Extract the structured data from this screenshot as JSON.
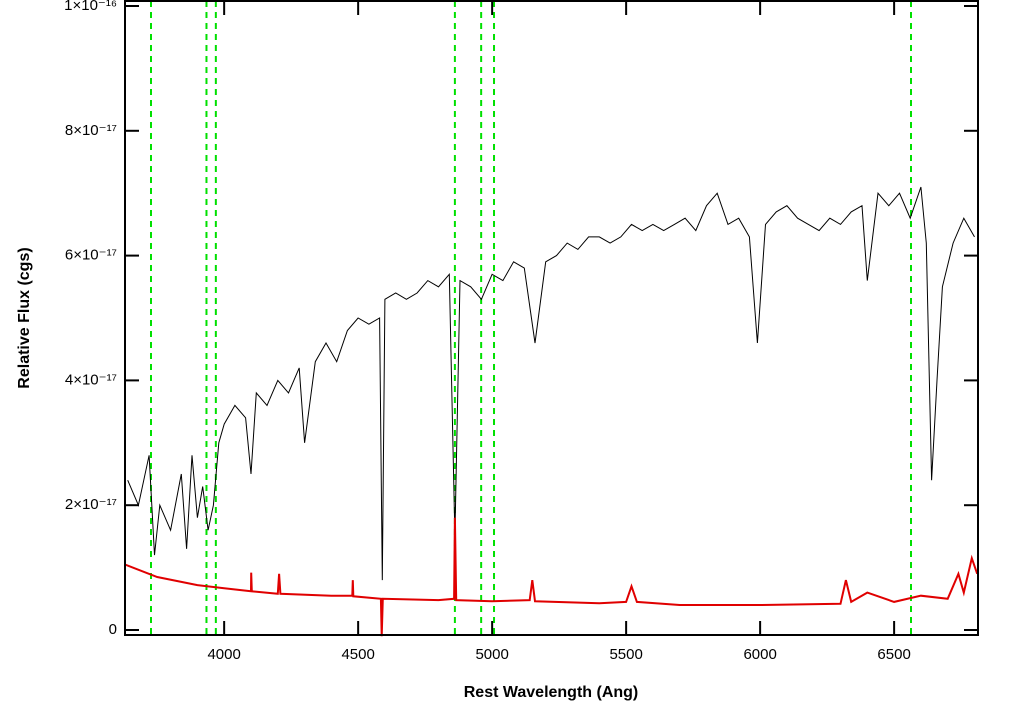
{
  "chart_data": {
    "type": "line",
    "xlabel": "Rest Wavelength (Ang)",
    "ylabel": "Relative Flux (cgs)",
    "xlim": [
      3630,
      6813
    ],
    "ylim": [
      -8e-19,
      1.008e-16
    ],
    "xticks": [
      4000,
      4500,
      5000,
      5500,
      6000,
      6500
    ],
    "yticks": [
      0,
      {
        "value": 2e-17,
        "label": "2×10⁻¹⁷"
      },
      {
        "value": 4e-17,
        "label": "4×10⁻¹⁷"
      },
      {
        "value": 6e-17,
        "label": "6×10⁻¹⁷"
      },
      {
        "value": 8e-17,
        "label": "8×10⁻¹⁷"
      },
      {
        "value": 1e-16,
        "label": "1×10⁻¹⁶"
      }
    ],
    "series": [
      {
        "color": "#000000",
        "x": [
          3640,
          3680,
          3720,
          3740,
          3760,
          3800,
          3840,
          3860,
          3880,
          3900,
          3920,
          3940,
          3960,
          3980,
          4000,
          4040,
          4080,
          4100,
          4120,
          4160,
          4200,
          4240,
          4280,
          4300,
          4340,
          4380,
          4420,
          4460,
          4500,
          4540,
          4580,
          4590,
          4600,
          4640,
          4680,
          4720,
          4760,
          4800,
          4840,
          4861,
          4880,
          4920,
          4960,
          5000,
          5040,
          5080,
          5120,
          5160,
          5200,
          5240,
          5280,
          5320,
          5360,
          5400,
          5440,
          5480,
          5520,
          5560,
          5600,
          5640,
          5680,
          5720,
          5760,
          5800,
          5840,
          5880,
          5920,
          5960,
          5990,
          6020,
          6060,
          6100,
          6140,
          6180,
          6220,
          6260,
          6300,
          6340,
          6380,
          6400,
          6440,
          6480,
          6520,
          6560,
          6600,
          6620,
          6640,
          6660,
          6680,
          6720,
          6760,
          6800
        ],
        "values": [
          2.4e-17,
          2e-17,
          2.8e-17,
          1.2e-17,
          2e-17,
          1.6e-17,
          2.5e-17,
          1.3e-17,
          2.8e-17,
          1.8e-17,
          2.3e-17,
          1.6e-17,
          2e-17,
          3e-17,
          3.3e-17,
          3.6e-17,
          3.4e-17,
          2.5e-17,
          3.8e-17,
          3.6e-17,
          4e-17,
          3.8e-17,
          4.2e-17,
          3e-17,
          4.3e-17,
          4.6e-17,
          4.3e-17,
          4.8e-17,
          5e-17,
          4.9e-17,
          5e-17,
          8e-18,
          5.3e-17,
          5.4e-17,
          5.3e-17,
          5.4e-17,
          5.6e-17,
          5.5e-17,
          5.7e-17,
          1.5e-17,
          5.6e-17,
          5.5e-17,
          5.3e-17,
          5.7e-17,
          5.6e-17,
          5.9e-17,
          5.8e-17,
          4.6e-17,
          5.9e-17,
          6e-17,
          6.2e-17,
          6.1e-17,
          6.3e-17,
          6.3e-17,
          6.2e-17,
          6.3e-17,
          6.5e-17,
          6.4e-17,
          6.5e-17,
          6.4e-17,
          6.5e-17,
          6.6e-17,
          6.4e-17,
          6.8e-17,
          7e-17,
          6.5e-17,
          6.6e-17,
          6.3e-17,
          4.6e-17,
          6.5e-17,
          6.7e-17,
          6.8e-17,
          6.6e-17,
          6.5e-17,
          6.4e-17,
          6.6e-17,
          6.5e-17,
          6.7e-17,
          6.8e-17,
          5.6e-17,
          7e-17,
          6.8e-17,
          7e-17,
          6.6e-17,
          7.1e-17,
          6.2e-17,
          2.4e-17,
          4e-17,
          5.5e-17,
          6.2e-17,
          6.6e-17,
          6.3e-17
        ]
      },
      {
        "color": "#e00000",
        "x": [
          3630,
          3750,
          3900,
          4000,
          4100,
          4101,
          4103,
          4200,
          4205,
          4210,
          4400,
          4478,
          4480,
          4482,
          4585,
          4588,
          4592,
          4800,
          4858,
          4861,
          4866,
          5000,
          5140,
          5150,
          5160,
          5400,
          5500,
          5520,
          5540,
          5700,
          6000,
          6300,
          6320,
          6340,
          6400,
          6500,
          6600,
          6700,
          6740,
          6760,
          6790,
          6810
        ],
        "values": [
          1.05e-17,
          8.5e-18,
          7.2e-18,
          6.7e-18,
          6.2e-18,
          9.2e-18,
          6.2e-18,
          5.8e-18,
          9e-18,
          5.8e-18,
          5.5e-18,
          5.5e-18,
          8e-18,
          5.4e-18,
          5e-18,
          -1e-18,
          5e-18,
          4.8e-18,
          5e-18,
          1.8e-17,
          4.8e-18,
          4.6e-18,
          4.8e-18,
          8e-18,
          4.6e-18,
          4.3e-18,
          4.5e-18,
          7e-18,
          4.5e-18,
          4e-18,
          4e-18,
          4.2e-18,
          8e-18,
          4.5e-18,
          6e-18,
          4.5e-18,
          5.5e-18,
          5e-18,
          9e-18,
          6e-18,
          1.15e-17,
          9e-18
        ]
      }
    ],
    "reference_lines": {
      "color": "#00e000",
      "x": [
        3727,
        3934,
        3969,
        4861,
        4959,
        5007,
        6563
      ]
    }
  }
}
